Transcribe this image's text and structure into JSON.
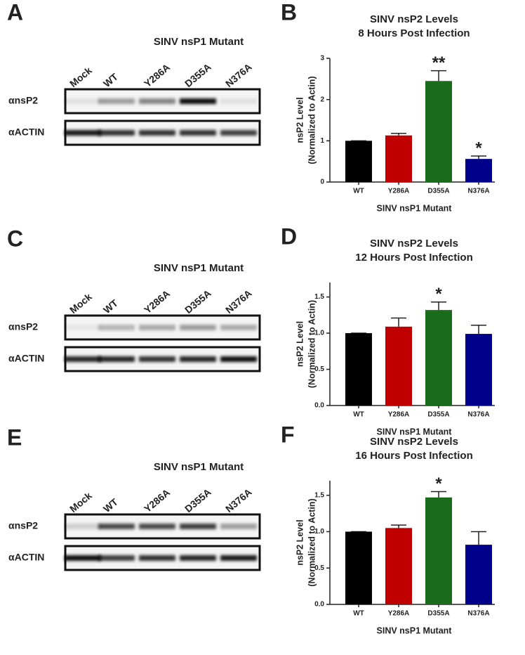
{
  "blots": [
    {
      "label": "A",
      "title": "SINV nsP1 Mutant",
      "lanes": [
        "Mock",
        "WT",
        "Y286A",
        "D355A",
        "N376A"
      ],
      "rows": [
        "αnsP2",
        "αACTIN"
      ]
    },
    {
      "label": "C",
      "title": "SINV nsP1 Mutant",
      "lanes": [
        "Mock",
        "WT",
        "Y286A",
        "D355A",
        "N376A"
      ],
      "rows": [
        "αnsP2",
        "αACTIN"
      ]
    },
    {
      "label": "E",
      "title": "SINV nsP1 Mutant",
      "lanes": [
        "Mock",
        "WT",
        "Y286A",
        "D355A",
        "N376A"
      ],
      "rows": [
        "αnsP2",
        "αACTIN"
      ]
    }
  ],
  "chart_data": [
    {
      "type": "bar",
      "panel_label": "B",
      "title": [
        "SINV nsP2 Levels",
        "8 Hours Post Infection"
      ],
      "y_label": [
        "nsP2 Level",
        "(Normalized to Actin)"
      ],
      "x_label": "SINV nsP1 Mutant",
      "categories": [
        "WT",
        "Y286A",
        "D355A",
        "N376A"
      ],
      "values": [
        1.0,
        1.13,
        2.45,
        0.56
      ],
      "errors": [
        0,
        0.05,
        0.25,
        0.07
      ],
      "colors": [
        "#000000",
        "#c00000",
        "#1a6b1a",
        "#00008b"
      ],
      "annotations": [
        null,
        null,
        "**",
        "*"
      ],
      "ylim": [
        0,
        3
      ],
      "yticks": [
        0,
        1,
        2,
        3
      ]
    },
    {
      "type": "bar",
      "panel_label": "D",
      "title": [
        "SINV nsP2 Levels",
        "12 Hours Post Infection"
      ],
      "y_label": [
        "nsP2 Level",
        "(Normalized to Actin)"
      ],
      "x_label": "SINV nsP1 Mutant",
      "categories": [
        "WT",
        "Y286A",
        "D355A",
        "N376A"
      ],
      "values": [
        1.0,
        1.09,
        1.32,
        0.99
      ],
      "errors": [
        0,
        0.12,
        0.11,
        0.12
      ],
      "colors": [
        "#000000",
        "#c00000",
        "#1a6b1a",
        "#00008b"
      ],
      "annotations": [
        null,
        null,
        "*",
        null
      ],
      "ylim": [
        0,
        1.7
      ],
      "yticks": [
        {
          "value": 0,
          "label": "0.0"
        },
        {
          "value": 0.5,
          "label": "0.5"
        },
        {
          "value": 1,
          "label": "1.0"
        },
        {
          "value": 1.5,
          "label": "1.5"
        }
      ]
    },
    {
      "type": "bar",
      "panel_label": "F",
      "title": [
        "SINV nsP2 Levels",
        "16 Hours Post Infection"
      ],
      "y_label": [
        "nsP2 Level",
        "(Normalized to Actin)"
      ],
      "x_label": "SINV nsP1 Mutant",
      "categories": [
        "WT",
        "Y286A",
        "D355A",
        "N376A"
      ],
      "values": [
        1.0,
        1.05,
        1.47,
        0.82
      ],
      "errors": [
        0,
        0.04,
        0.08,
        0.18
      ],
      "colors": [
        "#000000",
        "#c00000",
        "#1a6b1a",
        "#00008b"
      ],
      "annotations": [
        null,
        null,
        "*",
        null
      ],
      "ylim": [
        0,
        1.7
      ],
      "yticks": [
        {
          "value": 0,
          "label": "0.0"
        },
        {
          "value": 0.5,
          "label": "0.5"
        },
        {
          "value": 1,
          "label": "1.0"
        },
        {
          "value": 1.5,
          "label": "1.5"
        }
      ]
    }
  ]
}
